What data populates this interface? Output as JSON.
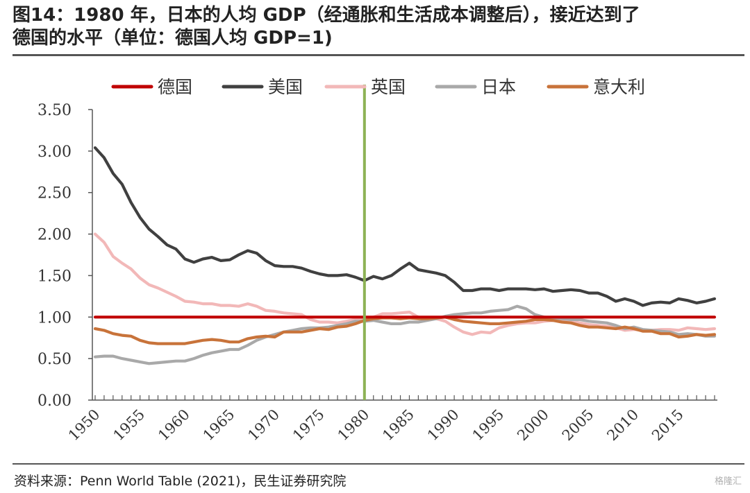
{
  "chart_data": {
    "type": "line",
    "title_line1": "图14：1980 年，日本的人均 GDP（经通胀和生活成本调整后），接近达到了",
    "title_line2": "德国的水平（单位：德国人均 GDP=1)",
    "source": "资料来源：Penn World Table (2021)，民生证券研究院",
    "xlabel": "",
    "ylabel": "",
    "ylim": [
      0,
      3.5
    ],
    "yticks": [
      "0.00",
      "0.50",
      "1.00",
      "1.50",
      "2.00",
      "2.50",
      "3.00",
      "3.50"
    ],
    "xlim": [
      1950,
      2019
    ],
    "xticks": [
      "1950",
      "1955",
      "1960",
      "1965",
      "1970",
      "1975",
      "1980",
      "1985",
      "1990",
      "1995",
      "2000",
      "2005",
      "2010",
      "2015"
    ],
    "legend_position": "top",
    "grid": false,
    "marker_line": {
      "x": 1980,
      "color": "#8db255"
    },
    "x": [
      1950,
      1951,
      1952,
      1953,
      1954,
      1955,
      1956,
      1957,
      1958,
      1959,
      1960,
      1961,
      1962,
      1963,
      1964,
      1965,
      1966,
      1967,
      1968,
      1969,
      1970,
      1971,
      1972,
      1973,
      1974,
      1975,
      1976,
      1977,
      1978,
      1979,
      1980,
      1981,
      1982,
      1983,
      1984,
      1985,
      1986,
      1987,
      1988,
      1989,
      1990,
      1991,
      1992,
      1993,
      1994,
      1995,
      1996,
      1997,
      1998,
      1999,
      2000,
      2001,
      2002,
      2003,
      2004,
      2005,
      2006,
      2007,
      2008,
      2009,
      2010,
      2011,
      2012,
      2013,
      2014,
      2015,
      2016,
      2017,
      2018,
      2019
    ],
    "series": [
      {
        "name": "德国",
        "color": "#c00000",
        "values": [
          1,
          1,
          1,
          1,
          1,
          1,
          1,
          1,
          1,
          1,
          1,
          1,
          1,
          1,
          1,
          1,
          1,
          1,
          1,
          1,
          1,
          1,
          1,
          1,
          1,
          1,
          1,
          1,
          1,
          1,
          1,
          1,
          1,
          1,
          1,
          1,
          1,
          1,
          1,
          1,
          1,
          1,
          1,
          1,
          1,
          1,
          1,
          1,
          1,
          1,
          1,
          1,
          1,
          1,
          1,
          1,
          1,
          1,
          1,
          1,
          1,
          1,
          1,
          1,
          1,
          1,
          1,
          1,
          1,
          1
        ]
      },
      {
        "name": "美国",
        "color": "#404040",
        "values": [
          3.04,
          2.92,
          2.73,
          2.6,
          2.38,
          2.2,
          2.06,
          1.97,
          1.87,
          1.82,
          1.7,
          1.66,
          1.7,
          1.72,
          1.68,
          1.69,
          1.75,
          1.8,
          1.77,
          1.68,
          1.62,
          1.61,
          1.61,
          1.59,
          1.55,
          1.52,
          1.5,
          1.5,
          1.51,
          1.48,
          1.44,
          1.49,
          1.46,
          1.5,
          1.58,
          1.65,
          1.57,
          1.55,
          1.53,
          1.5,
          1.42,
          1.32,
          1.32,
          1.34,
          1.34,
          1.32,
          1.34,
          1.34,
          1.34,
          1.33,
          1.34,
          1.31,
          1.32,
          1.33,
          1.32,
          1.29,
          1.29,
          1.25,
          1.19,
          1.22,
          1.19,
          1.14,
          1.17,
          1.18,
          1.17,
          1.22,
          1.2,
          1.17,
          1.19,
          1.22
        ]
      },
      {
        "name": "英国",
        "color": "#f2b8b8",
        "values": [
          2.0,
          1.9,
          1.73,
          1.65,
          1.58,
          1.47,
          1.39,
          1.35,
          1.3,
          1.25,
          1.19,
          1.18,
          1.16,
          1.16,
          1.14,
          1.14,
          1.13,
          1.16,
          1.13,
          1.08,
          1.07,
          1.05,
          1.04,
          1.03,
          0.97,
          0.94,
          0.94,
          0.93,
          0.95,
          0.97,
          0.97,
          1.0,
          1.04,
          1.04,
          1.05,
          1.06,
          1.0,
          0.99,
          0.98,
          0.95,
          0.88,
          0.82,
          0.79,
          0.82,
          0.81,
          0.87,
          0.9,
          0.92,
          0.93,
          0.93,
          0.95,
          0.96,
          0.96,
          0.95,
          0.93,
          0.91,
          0.9,
          0.89,
          0.87,
          0.84,
          0.85,
          0.84,
          0.84,
          0.85,
          0.85,
          0.84,
          0.87,
          0.86,
          0.85,
          0.86
        ]
      },
      {
        "name": "日本",
        "color": "#a9a9a9",
        "values": [
          0.52,
          0.53,
          0.53,
          0.5,
          0.48,
          0.46,
          0.44,
          0.45,
          0.46,
          0.47,
          0.47,
          0.5,
          0.54,
          0.57,
          0.59,
          0.61,
          0.61,
          0.66,
          0.72,
          0.76,
          0.79,
          0.82,
          0.84,
          0.86,
          0.87,
          0.87,
          0.88,
          0.9,
          0.92,
          0.95,
          0.95,
          0.96,
          0.94,
          0.92,
          0.92,
          0.94,
          0.94,
          0.96,
          0.98,
          1.01,
          1.03,
          1.04,
          1.05,
          1.05,
          1.07,
          1.08,
          1.09,
          1.13,
          1.1,
          1.03,
          1.0,
          0.99,
          0.98,
          0.97,
          0.97,
          0.95,
          0.94,
          0.93,
          0.9,
          0.86,
          0.88,
          0.85,
          0.84,
          0.83,
          0.82,
          0.79,
          0.8,
          0.79,
          0.77,
          0.77
        ]
      },
      {
        "name": "意大利",
        "color": "#c8733a",
        "values": [
          0.86,
          0.84,
          0.8,
          0.78,
          0.77,
          0.72,
          0.69,
          0.68,
          0.68,
          0.68,
          0.68,
          0.7,
          0.72,
          0.73,
          0.72,
          0.7,
          0.7,
          0.74,
          0.76,
          0.77,
          0.76,
          0.82,
          0.82,
          0.82,
          0.84,
          0.86,
          0.85,
          0.88,
          0.89,
          0.92,
          0.96,
          0.98,
          0.99,
          0.99,
          0.98,
          0.99,
          0.98,
          0.98,
          0.99,
          1.0,
          0.97,
          0.95,
          0.94,
          0.93,
          0.92,
          0.92,
          0.93,
          0.94,
          0.95,
          0.97,
          0.97,
          0.96,
          0.94,
          0.93,
          0.9,
          0.88,
          0.88,
          0.87,
          0.86,
          0.88,
          0.86,
          0.83,
          0.83,
          0.8,
          0.8,
          0.76,
          0.77,
          0.79,
          0.78,
          0.79
        ]
      }
    ]
  },
  "watermark": "格隆汇"
}
